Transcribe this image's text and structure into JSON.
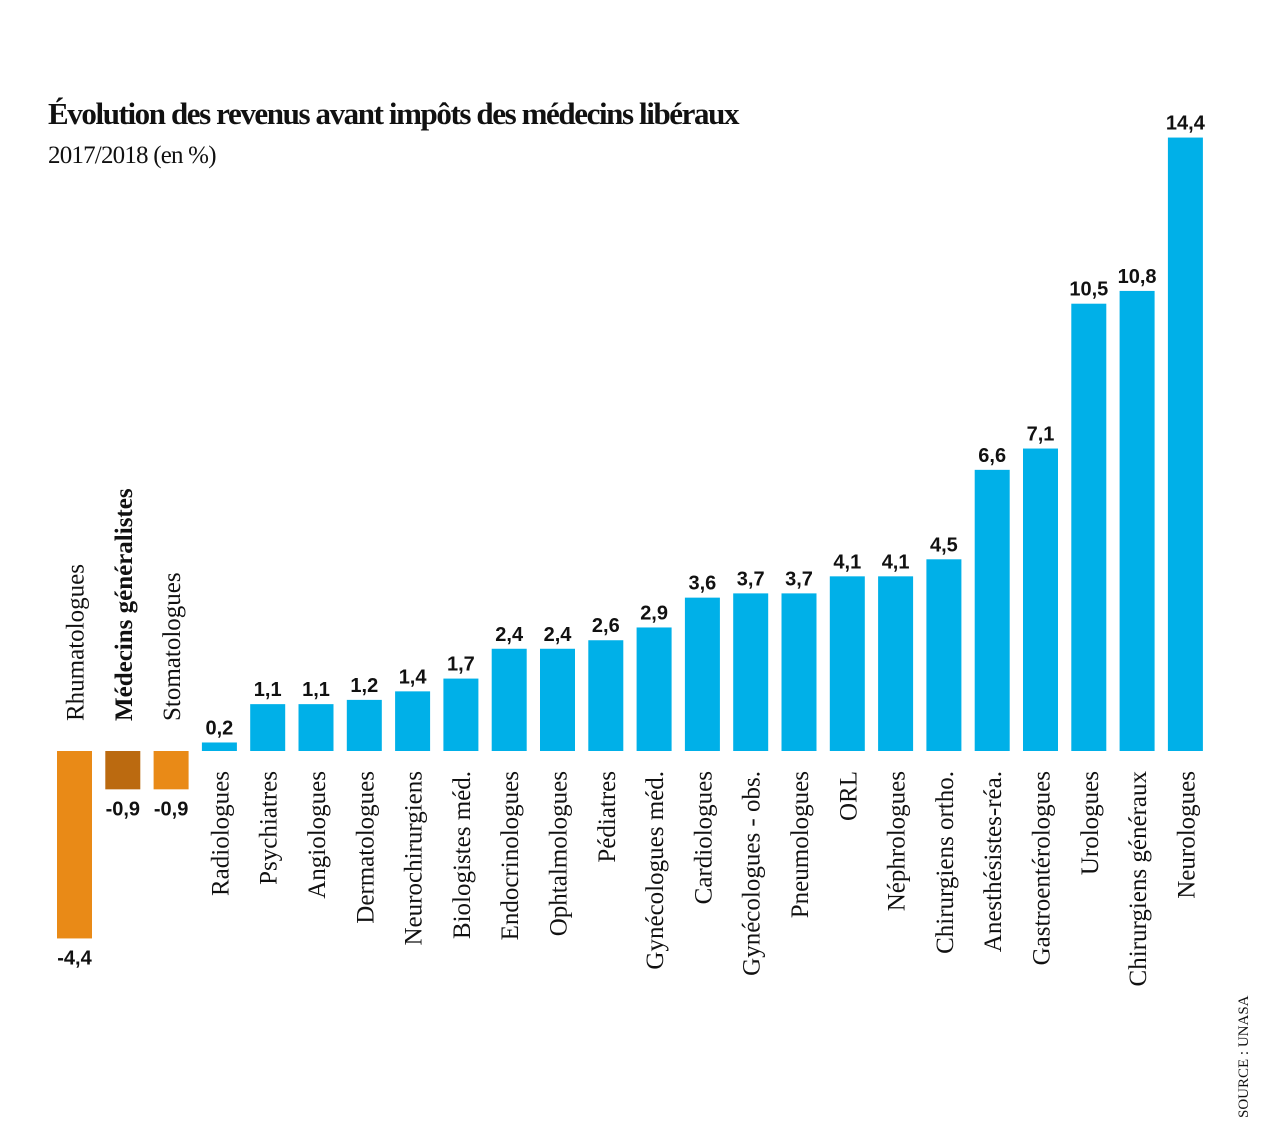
{
  "chart_data": {
    "type": "bar",
    "title": "Évolution des revenus avant impôts des médecins libéraux",
    "subtitle": "2017/2018 (en %)",
    "source": "SOURCE : UNASA",
    "xlabel": "",
    "ylabel": "",
    "ylim": [
      -4.4,
      14.4
    ],
    "grid": false,
    "legend": "none",
    "categories": [
      "Rhumatologues",
      "Médecins généralistes",
      "Stomatologues",
      "Radiologues",
      "Psychiatres",
      "Angiologues",
      "Dermatologues",
      "Neurochirurgiens",
      "Biologistes méd.",
      "Endocrinologues",
      "Ophtalmologues",
      "Pédiatres",
      "Gynécologues méd.",
      "Cardiologues",
      "Gynécologues - obs.",
      "Pneumologues",
      "ORL",
      "Néphrologues",
      "Chirurgiens ortho.",
      "Anesthésistes-réa.",
      "Gastroentérologues",
      "Urologues",
      "Chirurgiens généraux",
      "Neurologues"
    ],
    "values": [
      -4.4,
      -0.9,
      -0.9,
      0.2,
      1.1,
      1.1,
      1.2,
      1.4,
      1.7,
      2.4,
      2.4,
      2.6,
      2.9,
      3.6,
      3.7,
      3.7,
      4.1,
      4.1,
      4.5,
      6.6,
      7.1,
      10.5,
      10.8,
      14.4
    ],
    "value_labels": [
      "-4,4",
      "-0,9",
      "-0,9",
      "0,2",
      "1,1",
      "1,1",
      "1,2",
      "1,4",
      "1,7",
      "2,4",
      "2,4",
      "2,6",
      "2,9",
      "3,6",
      "3,7",
      "3,7",
      "4,1",
      "4,1",
      "4,5",
      "6,6",
      "7,1",
      "10,5",
      "10,8",
      "14,4"
    ],
    "highlighted_category": "Médecins généralistes",
    "colors": {
      "positive": "#00b0e8",
      "negative": "#e98a17",
      "highlight": "#bb6a10",
      "text": "#111111"
    }
  }
}
